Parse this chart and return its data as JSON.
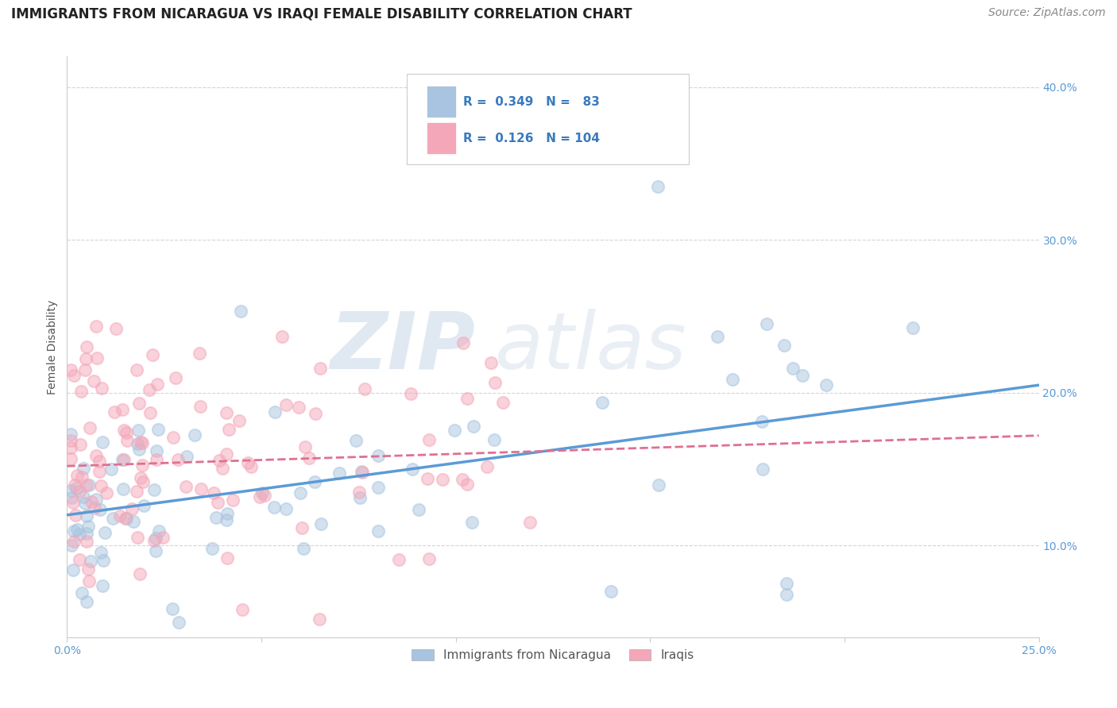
{
  "title": "IMMIGRANTS FROM NICARAGUA VS IRAQI FEMALE DISABILITY CORRELATION CHART",
  "source": "Source: ZipAtlas.com",
  "ylabel": "Female Disability",
  "watermark_part1": "ZIP",
  "watermark_part2": "atlas",
  "legend_blue_R": "0.349",
  "legend_blue_N": "83",
  "legend_pink_R": "0.126",
  "legend_pink_N": "104",
  "legend_label1": "Immigrants from Nicaragua",
  "legend_label2": "Iraqis",
  "xlim": [
    0.0,
    0.25
  ],
  "ylim": [
    0.04,
    0.42
  ],
  "xtick_vals": [
    0.0,
    0.05,
    0.1,
    0.15,
    0.2,
    0.25
  ],
  "xtick_labels": [
    "0.0%",
    "",
    "",
    "",
    "",
    "25.0%"
  ],
  "ytick_vals": [
    0.1,
    0.2,
    0.3,
    0.4
  ],
  "ytick_labels": [
    "10.0%",
    "20.0%",
    "30.0%",
    "40.0%"
  ],
  "blue_color": "#a8c4e0",
  "pink_color": "#f4a7b9",
  "blue_line_color": "#5b9bd5",
  "pink_line_color": "#e07090",
  "background_color": "#ffffff",
  "grid_color": "#d0d0d0",
  "blue_trend_x": [
    0.0,
    0.25
  ],
  "blue_trend_y": [
    0.12,
    0.205
  ],
  "pink_trend_x": [
    0.0,
    0.25
  ],
  "pink_trend_y": [
    0.152,
    0.172
  ],
  "title_fontsize": 12,
  "axis_label_fontsize": 10,
  "tick_fontsize": 10,
  "source_fontsize": 10,
  "scatter_size": 120,
  "scatter_alpha": 0.5,
  "scatter_linewidth": 1.5
}
